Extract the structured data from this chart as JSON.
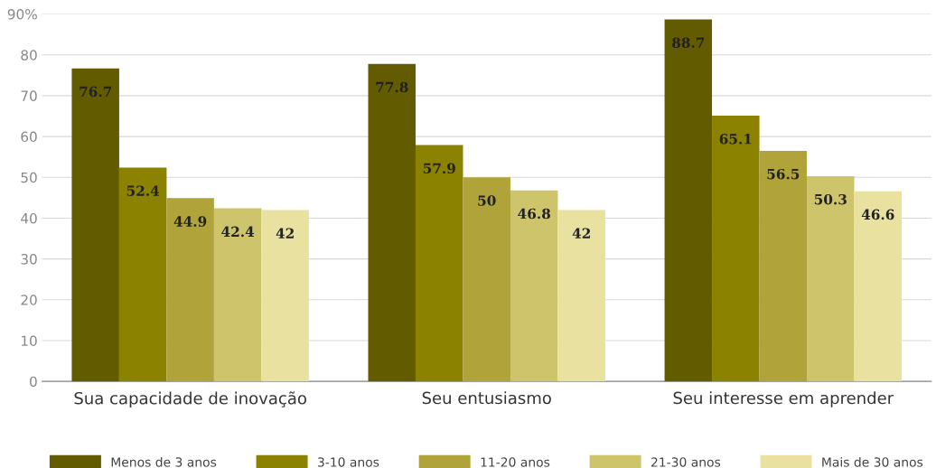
{
  "chart_data": {
    "type": "bar",
    "categories": [
      "Sua capacidade de inovação",
      "Seu entusiasmo",
      "Seu interesse em aprender"
    ],
    "series": [
      {
        "name": "Menos de 3 anos",
        "color": "#635b00",
        "values": [
          76.7,
          77.8,
          88.7
        ]
      },
      {
        "name": "3-10 anos",
        "color": "#8b8200",
        "values": [
          52.4,
          57.9,
          65.1
        ]
      },
      {
        "name": "11-20 anos",
        "color": "#b0a33a",
        "values": [
          44.9,
          50,
          56.5
        ]
      },
      {
        "name": "21-30 anos",
        "color": "#cdc46c",
        "values": [
          42.4,
          46.8,
          50.3
        ]
      },
      {
        "name": "Mais de 30 anos",
        "color": "#e9e1a0",
        "values": [
          42,
          42,
          46.6
        ]
      }
    ],
    "ylim": [
      0,
      90
    ],
    "yticks": [
      0,
      10,
      20,
      30,
      40,
      50,
      60,
      70,
      80,
      {
        "value": 90,
        "label": "90%"
      }
    ],
    "grid": "y",
    "legend": "bottom",
    "data_labels": true
  }
}
